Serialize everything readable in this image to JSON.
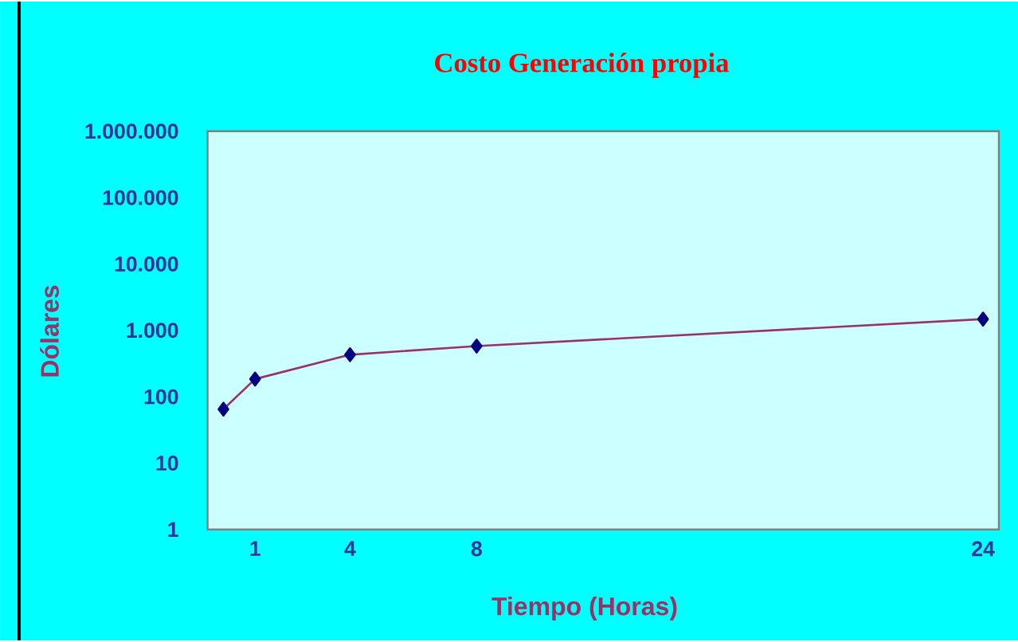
{
  "chart_data": {
    "type": "line",
    "title": "Costo Generación propia",
    "xlabel": "Tiempo (Horas)",
    "ylabel": "Dólares",
    "x": [
      0,
      1,
      4,
      8,
      24
    ],
    "series": [
      {
        "color": "#993366",
        "values": [
          65,
          185,
          430,
          580,
          1480
        ]
      }
    ],
    "xlim": [
      -0.5,
      24.5
    ],
    "xticks": [
      1,
      4,
      8,
      24
    ],
    "ylim": [
      1,
      1000000
    ],
    "yticks": [
      1,
      10,
      100,
      {
        "value": 1000,
        "label": "1.000"
      },
      {
        "value": 10000,
        "label": "10.000"
      },
      {
        "value": 100000,
        "label": "100.000"
      },
      {
        "value": 1000000,
        "label": "1.000.000"
      }
    ],
    "log": "y",
    "marker": "diamond",
    "line_style": "solid"
  }
}
